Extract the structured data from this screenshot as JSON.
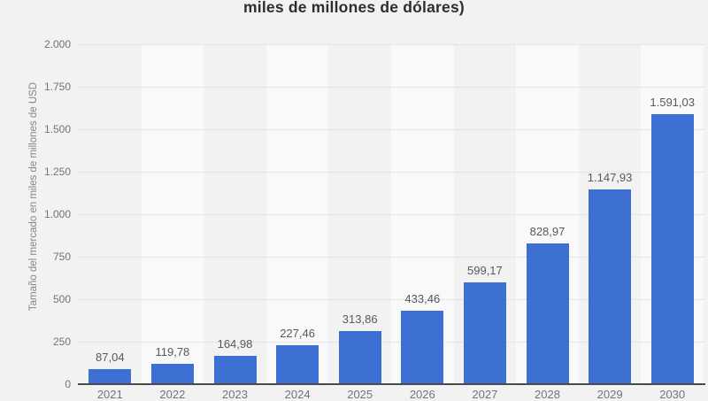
{
  "chart": {
    "title_visible_line": "miles de millones de dólares)",
    "y_axis_title": "Tamaño del mercado en miles de millones de USD"
  },
  "chart_data": {
    "type": "bar",
    "title": "miles de millones de dólares)",
    "xlabel": "",
    "ylabel": "Tamaño del mercado en miles de millones de USD",
    "categories": [
      "2021",
      "2022",
      "2023",
      "2024",
      "2025",
      "2026",
      "2027",
      "2028",
      "2029",
      "2030"
    ],
    "values": [
      87.04,
      119.78,
      164.98,
      227.46,
      313.86,
      433.46,
      599.17,
      828.97,
      1147.93,
      1591.03
    ],
    "value_labels": [
      "87,04",
      "119,78",
      "164,98",
      "227,46",
      "313,86",
      "433,46",
      "599,17",
      "828,97",
      "1.147,93",
      "1.591,03"
    ],
    "ylim": [
      0,
      2000
    ],
    "y_ticks": [
      0,
      250,
      500,
      750,
      1000,
      1250,
      1500,
      1750,
      2000
    ],
    "y_tick_labels": [
      "0",
      "250",
      "500",
      "750",
      "1.000",
      "1.250",
      "1.500",
      "1.750",
      "2.000"
    ],
    "grid": "horizontal-dotted",
    "legend": "none",
    "colors": {
      "bar": "#3E6FD2",
      "background": "#F2F2F2",
      "band_alt": "#F9F9F9",
      "gridline": "#D4D4D4",
      "axis_line": "#4A4A4A",
      "tick_text": "#737373",
      "value_text": "#595959",
      "title_text": "#2E2E2E"
    }
  }
}
